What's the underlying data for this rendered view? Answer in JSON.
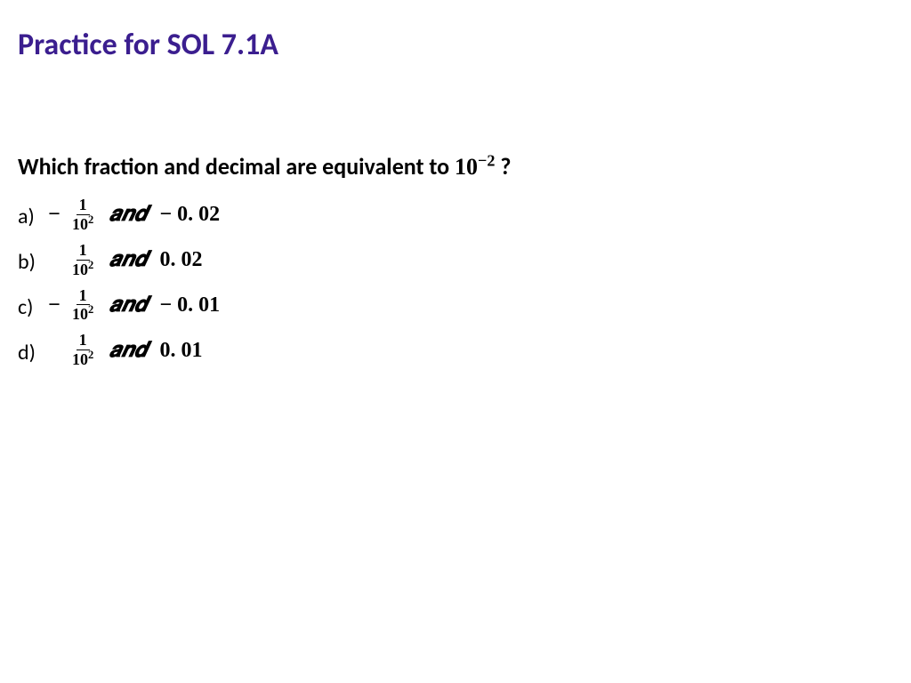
{
  "title": {
    "text": "Practice for SOL 7.1A",
    "color": "#3b1e8f",
    "fontsize": 34
  },
  "question": {
    "prefix": "Which fraction and decimal are equivalent to ",
    "base": "10",
    "exponent": "−2",
    "suffix": " ?"
  },
  "options": [
    {
      "label": "a)",
      "leading_neg": true,
      "frac_num": "1",
      "frac_den_base": "10",
      "frac_den_exp": "2",
      "and": "𝒂𝒏𝒅",
      "dec_neg": true,
      "decimal": "0. 02"
    },
    {
      "label": "b)",
      "leading_neg": false,
      "frac_num": "1",
      "frac_den_base": "10",
      "frac_den_exp": "2",
      "and": "𝒂𝒏𝒅",
      "dec_neg": false,
      "decimal": "0. 02"
    },
    {
      "label": "c)",
      "leading_neg": true,
      "frac_num": "1",
      "frac_den_base": "10",
      "frac_den_exp": "2",
      "and": "𝒂𝒏𝒅",
      "dec_neg": true,
      "decimal": "0. 01"
    },
    {
      "label": "d)",
      "leading_neg": false,
      "frac_num": "1",
      "frac_den_base": "10",
      "frac_den_exp": "2",
      "and": "𝒂𝒏𝒅",
      "dec_neg": false,
      "decimal": "0. 01"
    }
  ],
  "colors": {
    "background": "#ffffff",
    "text": "#000000",
    "title": "#3b1e8f"
  }
}
